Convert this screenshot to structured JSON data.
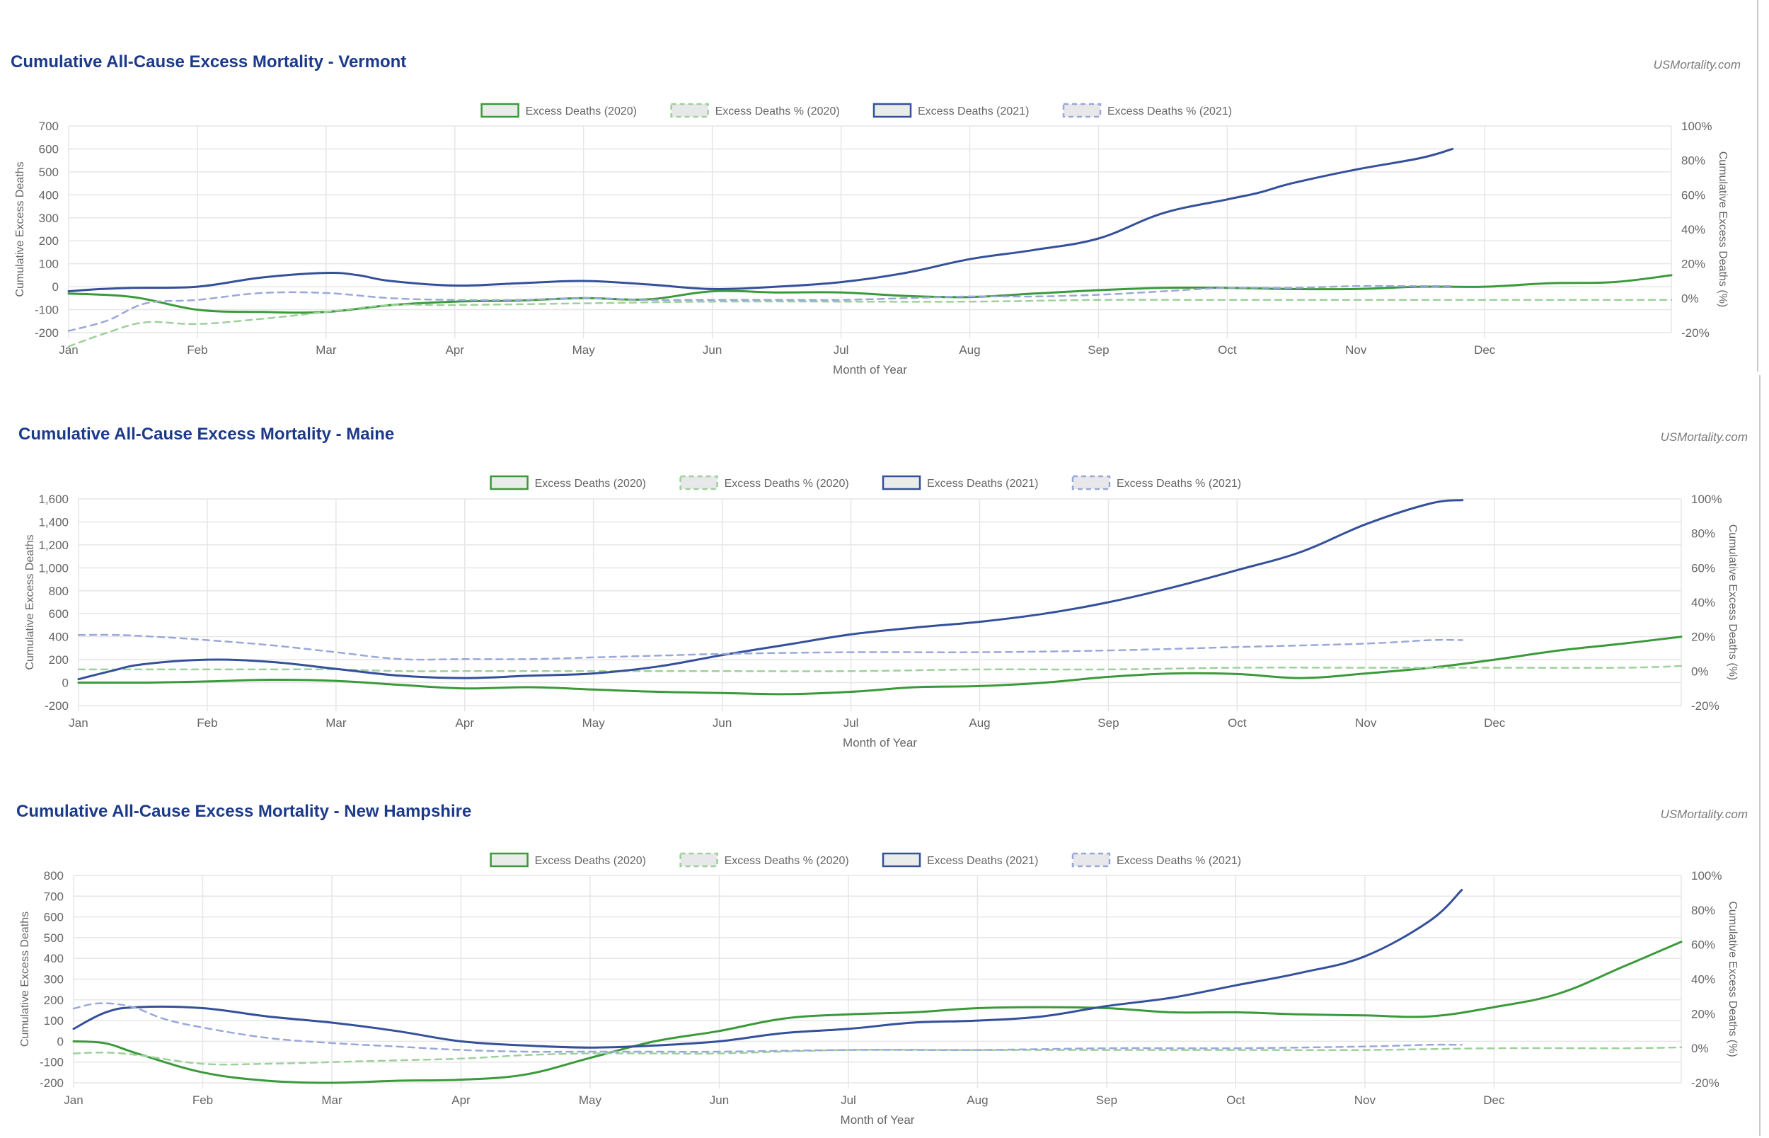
{
  "site": "USMortality.com",
  "colors": {
    "deaths_2020": "#3a9a3a",
    "deaths_pct_2020": "#9ed09b",
    "deaths_2021": "#34509a",
    "deaths_pct_2021": "#9aa8d8",
    "grid": "#e6e6e6",
    "title": "#1c3a8a",
    "tick_text": "#666666"
  },
  "legend": {
    "items": [
      "Excess Deaths (2020)",
      "Excess Deaths % (2020)",
      "Excess Deaths (2021)",
      "Excess Deaths % (2021)"
    ]
  },
  "chart_data": [
    {
      "type": "line",
      "title": "Cumulative All-Cause Excess Mortality - Vermont",
      "credit": "USMortality.com",
      "xlabel": "Month of Year",
      "ylabel": "Cumulative Excess Deaths",
      "y2label": "Cumulative Excess Deaths (%)",
      "x_ticks": [
        "Jan",
        "Feb",
        "Mar",
        "Apr",
        "May",
        "Jun",
        "Jul",
        "Aug",
        "Sep",
        "Oct",
        "Nov",
        "Dec"
      ],
      "xlim": [
        0,
        12.45
      ],
      "ylim": [
        -200,
        700
      ],
      "y_ticks": [
        -200,
        -100,
        0,
        100,
        200,
        300,
        400,
        500,
        600,
        700
      ],
      "y2lim": [
        -20,
        100
      ],
      "y2_ticks": [
        -20,
        0,
        20,
        40,
        60,
        80,
        100
      ],
      "grid": true,
      "legend_position": "top",
      "series": [
        {
          "name": "Excess Deaths (2020)",
          "axis": "left",
          "dashed": false,
          "x": [
            0,
            0.5,
            1,
            1.5,
            2,
            2.5,
            3,
            3.5,
            4,
            4.5,
            5,
            5.5,
            6,
            6.5,
            7,
            7.5,
            8,
            8.5,
            9,
            9.5,
            10,
            10.5,
            11,
            11.5,
            12,
            12.45
          ],
          "y": [
            -30,
            -45,
            -100,
            -110,
            -110,
            -80,
            -65,
            -60,
            -50,
            -55,
            -20,
            -25,
            -25,
            -40,
            -45,
            -30,
            -15,
            -5,
            -5,
            -10,
            -10,
            0,
            0,
            15,
            20,
            50
          ]
        },
        {
          "name": "Excess Deaths % (2020)",
          "axis": "right",
          "dashed": true,
          "x": [
            0,
            0.3,
            0.6,
            1,
            1.5,
            2,
            2.5,
            3,
            4,
            5,
            6,
            7,
            8,
            9,
            10,
            11,
            12,
            12.45
          ],
          "y": [
            -28,
            -20,
            -14,
            -15,
            -12,
            -8,
            -4,
            -4,
            -3,
            -2,
            -2,
            -2,
            -1,
            -1,
            -1,
            -1,
            -1,
            -1
          ]
        },
        {
          "name": "Excess Deaths (2021)",
          "axis": "left",
          "dashed": false,
          "x": [
            0,
            0.25,
            0.5,
            1,
            1.5,
            2,
            2.25,
            2.5,
            3,
            3.5,
            4,
            4.5,
            5,
            5.5,
            6,
            6.5,
            7,
            7.5,
            8,
            8.5,
            9,
            9.25,
            9.5,
            10,
            10.5,
            10.75
          ],
          "y": [
            -20,
            -10,
            -5,
            0,
            40,
            60,
            50,
            25,
            5,
            15,
            25,
            10,
            -10,
            0,
            20,
            60,
            120,
            160,
            210,
            320,
            380,
            410,
            450,
            510,
            560,
            600
          ]
        },
        {
          "name": "Excess Deaths % (2021)",
          "axis": "right",
          "dashed": true,
          "x": [
            0,
            0.3,
            0.6,
            1,
            1.5,
            2,
            2.5,
            3,
            3.5,
            4,
            4.5,
            5,
            5.5,
            6,
            6.5,
            7,
            7.5,
            8,
            8.5,
            9,
            9.5,
            10,
            10.5,
            10.75
          ],
          "y": [
            -19,
            -13,
            -3,
            -1,
            3,
            3,
            0,
            -1,
            -1,
            0,
            -1,
            -1,
            -1,
            -1,
            0,
            1,
            1,
            2,
            4,
            6,
            6,
            7,
            7,
            7
          ]
        }
      ]
    },
    {
      "type": "line",
      "title": "Cumulative All-Cause Excess Mortality - Maine",
      "credit": "USMortality.com",
      "xlabel": "Month of Year",
      "ylabel": "Cumulative Excess Deaths",
      "y2label": "Cumulative Excess Deaths (%)",
      "x_ticks": [
        "Jan",
        "Feb",
        "Mar",
        "Apr",
        "May",
        "Jun",
        "Jul",
        "Aug",
        "Sep",
        "Oct",
        "Nov",
        "Dec"
      ],
      "xlim": [
        0,
        12.45
      ],
      "ylim": [
        -200,
        1600
      ],
      "y_ticks": [
        -200,
        0,
        200,
        400,
        600,
        800,
        1000,
        1200,
        1400,
        1600
      ],
      "y_tick_labels": [
        "-200",
        "0",
        "200",
        "400",
        "600",
        "800",
        "1,000",
        "1,200",
        "1,400",
        "1,600"
      ],
      "y2lim": [
        -20,
        100
      ],
      "y2_ticks": [
        -20,
        0,
        20,
        40,
        60,
        80,
        100
      ],
      "grid": true,
      "legend_position": "top",
      "series": [
        {
          "name": "Excess Deaths (2020)",
          "axis": "left",
          "dashed": false,
          "x": [
            0,
            0.5,
            1,
            1.5,
            2,
            2.5,
            3,
            3.5,
            4,
            4.5,
            5,
            5.5,
            6,
            6.5,
            7,
            7.5,
            8,
            8.5,
            9,
            9.5,
            10,
            10.5,
            11,
            11.5,
            12,
            12.45
          ],
          "y": [
            0,
            0,
            10,
            25,
            15,
            -20,
            -50,
            -40,
            -60,
            -80,
            -90,
            -100,
            -80,
            -40,
            -30,
            0,
            50,
            80,
            75,
            40,
            80,
            130,
            200,
            280,
            340,
            400
          ]
        },
        {
          "name": "Excess Deaths % (2020)",
          "axis": "right",
          "dashed": true,
          "x": [
            0,
            0.5,
            1,
            1.5,
            2,
            2.5,
            3,
            4,
            5,
            6,
            7,
            8,
            9,
            10,
            11,
            12,
            12.45
          ],
          "y": [
            1,
            1,
            1,
            1,
            1,
            0,
            0,
            0,
            0,
            0,
            1,
            1,
            2,
            2,
            2,
            2,
            3
          ]
        },
        {
          "name": "Excess Deaths (2021)",
          "axis": "left",
          "dashed": false,
          "x": [
            0,
            0.25,
            0.5,
            1,
            1.5,
            2,
            2.5,
            3,
            3.5,
            4,
            4.5,
            5,
            5.5,
            6,
            6.5,
            7,
            7.5,
            8,
            8.5,
            9,
            9.5,
            10,
            10.5,
            10.75
          ],
          "y": [
            30,
            100,
            160,
            200,
            180,
            120,
            60,
            40,
            60,
            80,
            140,
            240,
            330,
            420,
            480,
            530,
            600,
            700,
            830,
            980,
            1140,
            1380,
            1560,
            1590
          ]
        },
        {
          "name": "Excess Deaths % (2021)",
          "axis": "right",
          "dashed": true,
          "x": [
            0,
            0.3,
            0.6,
            1,
            1.5,
            2,
            2.5,
            3,
            3.5,
            4,
            4.5,
            5,
            6,
            7,
            8,
            9,
            10,
            10.5,
            10.75
          ],
          "y": [
            21,
            21,
            20,
            18,
            15,
            11,
            7,
            7,
            7,
            8,
            9,
            10,
            11,
            11,
            12,
            14,
            16,
            18,
            18
          ]
        }
      ]
    },
    {
      "type": "line",
      "title": "Cumulative All-Cause Excess Mortality - New Hampshire",
      "credit": "USMortality.com",
      "xlabel": "Month of Year",
      "ylabel": "Cumulative Excess Deaths",
      "y2label": "Cumulative Excess Deaths (%)",
      "x_ticks": [
        "Jan",
        "Feb",
        "Mar",
        "Apr",
        "May",
        "Jun",
        "Jul",
        "Aug",
        "Sep",
        "Oct",
        "Nov",
        "Dec"
      ],
      "xlim": [
        0,
        12.45
      ],
      "ylim": [
        -200,
        800
      ],
      "y_ticks": [
        -200,
        -100,
        0,
        100,
        200,
        300,
        400,
        500,
        600,
        700,
        800
      ],
      "y2lim": [
        -20,
        100
      ],
      "y2_ticks": [
        -20,
        0,
        20,
        40,
        60,
        80,
        100
      ],
      "grid": true,
      "legend_position": "top",
      "series": [
        {
          "name": "Excess Deaths (2020)",
          "axis": "left",
          "dashed": false,
          "x": [
            0,
            0.25,
            0.5,
            1,
            1.5,
            2,
            2.5,
            3,
            3.5,
            4,
            4.5,
            5,
            5.5,
            6,
            6.5,
            7,
            7.5,
            8,
            8.5,
            9,
            9.5,
            10,
            10.5,
            11,
            11.5,
            12,
            12.45
          ],
          "y": [
            0,
            -10,
            -60,
            -150,
            -190,
            -200,
            -190,
            -185,
            -160,
            -80,
            0,
            50,
            110,
            130,
            140,
            160,
            165,
            160,
            140,
            140,
            130,
            125,
            120,
            165,
            230,
            360,
            480
          ]
        },
        {
          "name": "Excess Deaths % (2020)",
          "axis": "right",
          "dashed": true,
          "x": [
            0,
            0.25,
            0.5,
            1,
            1.5,
            2,
            2.5,
            3,
            3.5,
            4,
            4.5,
            5,
            6,
            7,
            8,
            9,
            10,
            11,
            12,
            12.45
          ],
          "y": [
            -3,
            -2.5,
            -4,
            -9,
            -9,
            -8,
            -7,
            -6,
            -4,
            -3,
            -3,
            -3,
            -1,
            -1,
            -1,
            -1,
            -1,
            0,
            0,
            0.5
          ]
        },
        {
          "name": "Excess Deaths (2021)",
          "axis": "left",
          "dashed": false,
          "x": [
            0,
            0.25,
            0.5,
            1,
            1.5,
            2,
            2.5,
            3,
            3.5,
            4,
            4.5,
            5,
            5.5,
            6,
            6.5,
            7,
            7.5,
            8,
            8.5,
            9,
            9.5,
            10,
            10.5,
            10.75
          ],
          "y": [
            60,
            140,
            165,
            160,
            120,
            90,
            50,
            0,
            -20,
            -30,
            -20,
            0,
            40,
            60,
            90,
            100,
            120,
            170,
            210,
            270,
            330,
            410,
            580,
            730
          ]
        },
        {
          "name": "Excess Deaths % (2021)",
          "axis": "right",
          "dashed": true,
          "x": [
            0,
            0.2,
            0.45,
            0.7,
            1,
            1.5,
            2,
            2.5,
            3,
            3.5,
            4,
            4.5,
            5,
            6,
            7,
            8,
            9,
            10,
            10.5,
            10.75
          ],
          "y": [
            23,
            26,
            24,
            17,
            12,
            6,
            3,
            1,
            -1,
            -2,
            -2,
            -2,
            -2,
            -1,
            -1,
            0,
            0,
            1,
            2,
            2
          ]
        }
      ]
    }
  ]
}
